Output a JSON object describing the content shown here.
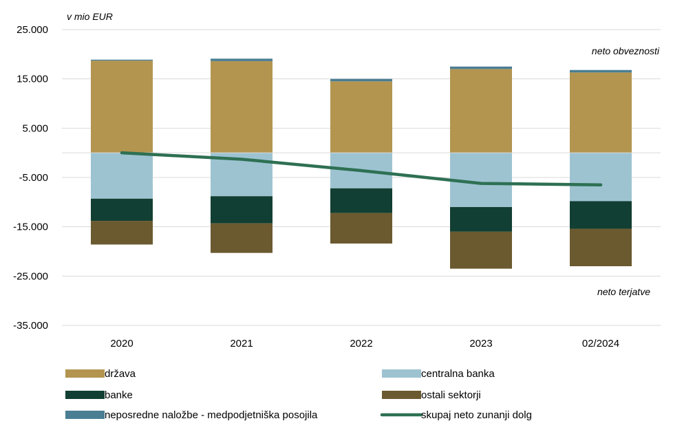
{
  "chart_data": {
    "type": "bar",
    "stacked": true,
    "unit_label": "v mio EUR",
    "annotations": {
      "top": "neto obveznosti",
      "bottom": "neto terjatve"
    },
    "categories": [
      "2020",
      "2021",
      "2022",
      "2023",
      "02/2024"
    ],
    "ylim": [
      -35000,
      25000
    ],
    "yticks": [
      25000,
      15000,
      5000,
      -5000,
      -15000,
      -25000,
      -35000
    ],
    "ytick_labels": [
      "25.000",
      "15.000",
      "5.000",
      "-5.000",
      "-15.000",
      "-25.000",
      "-35.000"
    ],
    "grid": true,
    "legend_position": "bottom",
    "series": [
      {
        "name": "država",
        "kind": "bar",
        "color": "#B39550",
        "values": [
          18700,
          18600,
          14500,
          17000,
          16300
        ]
      },
      {
        "name": "centralna banka",
        "kind": "bar",
        "color": "#9DC3D1",
        "values": [
          -9300,
          -8800,
          -7200,
          -11000,
          -9800
        ]
      },
      {
        "name": "banke",
        "kind": "bar",
        "color": "#123F33",
        "values": [
          -4500,
          -5500,
          -5000,
          -5000,
          -5600
        ]
      },
      {
        "name": "ostali sektorji",
        "kind": "bar",
        "color": "#6B5A30",
        "values": [
          -4800,
          -6000,
          -6200,
          -7500,
          -7600
        ]
      },
      {
        "name": "neposredne naložbe - medpodjetniška posojila",
        "kind": "bar",
        "color": "#4A7E93",
        "values": [
          200,
          500,
          500,
          500,
          500
        ]
      },
      {
        "name": "skupaj neto zunanji dolg",
        "kind": "line",
        "color": "#2E7053",
        "values": [
          0,
          -1300,
          -3600,
          -6200,
          -6500
        ]
      }
    ]
  }
}
